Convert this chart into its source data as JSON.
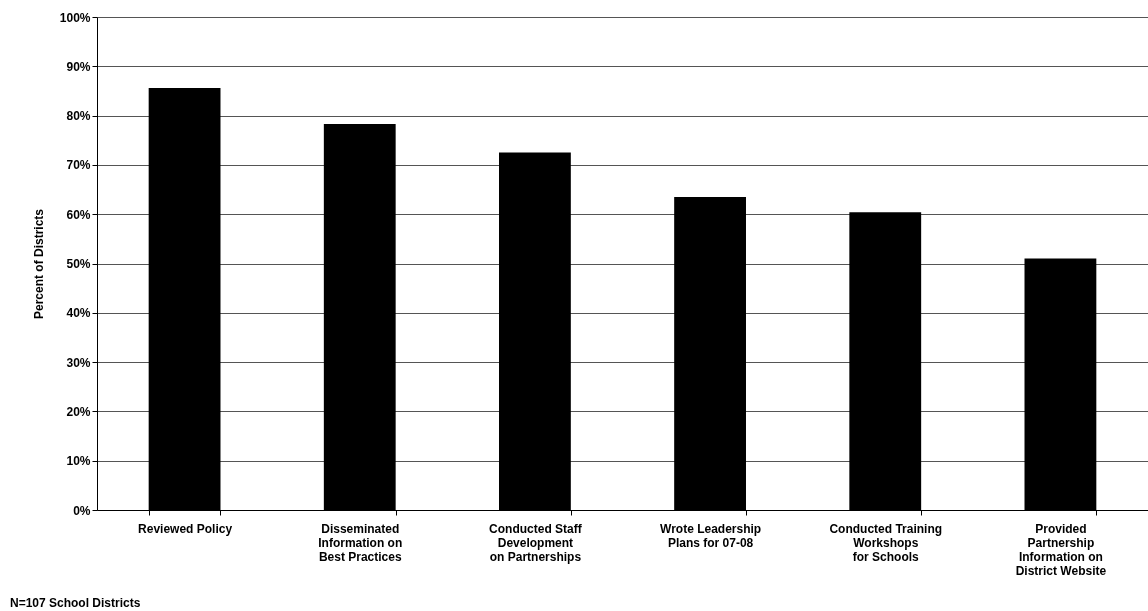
{
  "chart_data": {
    "type": "bar",
    "ylabel": "Percent of Districts",
    "categories": [
      "Reviewed Policy",
      "Disseminated Information on Best Practices",
      "Conducted Staff Development on Partnerships",
      "Wrote Leadership Plans for 07-08",
      "Conducted Training Workshops for Schools",
      "Provided Partnership Information on District Website"
    ],
    "values": [
      85.6,
      78.3,
      72.5,
      63.5,
      60.4,
      51.0
    ],
    "color": "#000000",
    "ylim": [
      0,
      100
    ],
    "yticks": [
      {
        "value": 0,
        "label": "0%"
      },
      {
        "value": 10,
        "label": "10%"
      },
      {
        "value": 20,
        "label": "20%"
      },
      {
        "value": 30,
        "label": "30%"
      },
      {
        "value": 40,
        "label": "40%"
      },
      {
        "value": 50,
        "label": "50%"
      },
      {
        "value": 60,
        "label": "60%"
      },
      {
        "value": 70,
        "label": "70%"
      },
      {
        "value": 80,
        "label": "80%"
      },
      {
        "value": 90,
        "label": "90%"
      },
      {
        "value": 100,
        "label": "100%"
      }
    ],
    "grid": "y",
    "annotations": [
      "N=107 School Districts"
    ]
  }
}
